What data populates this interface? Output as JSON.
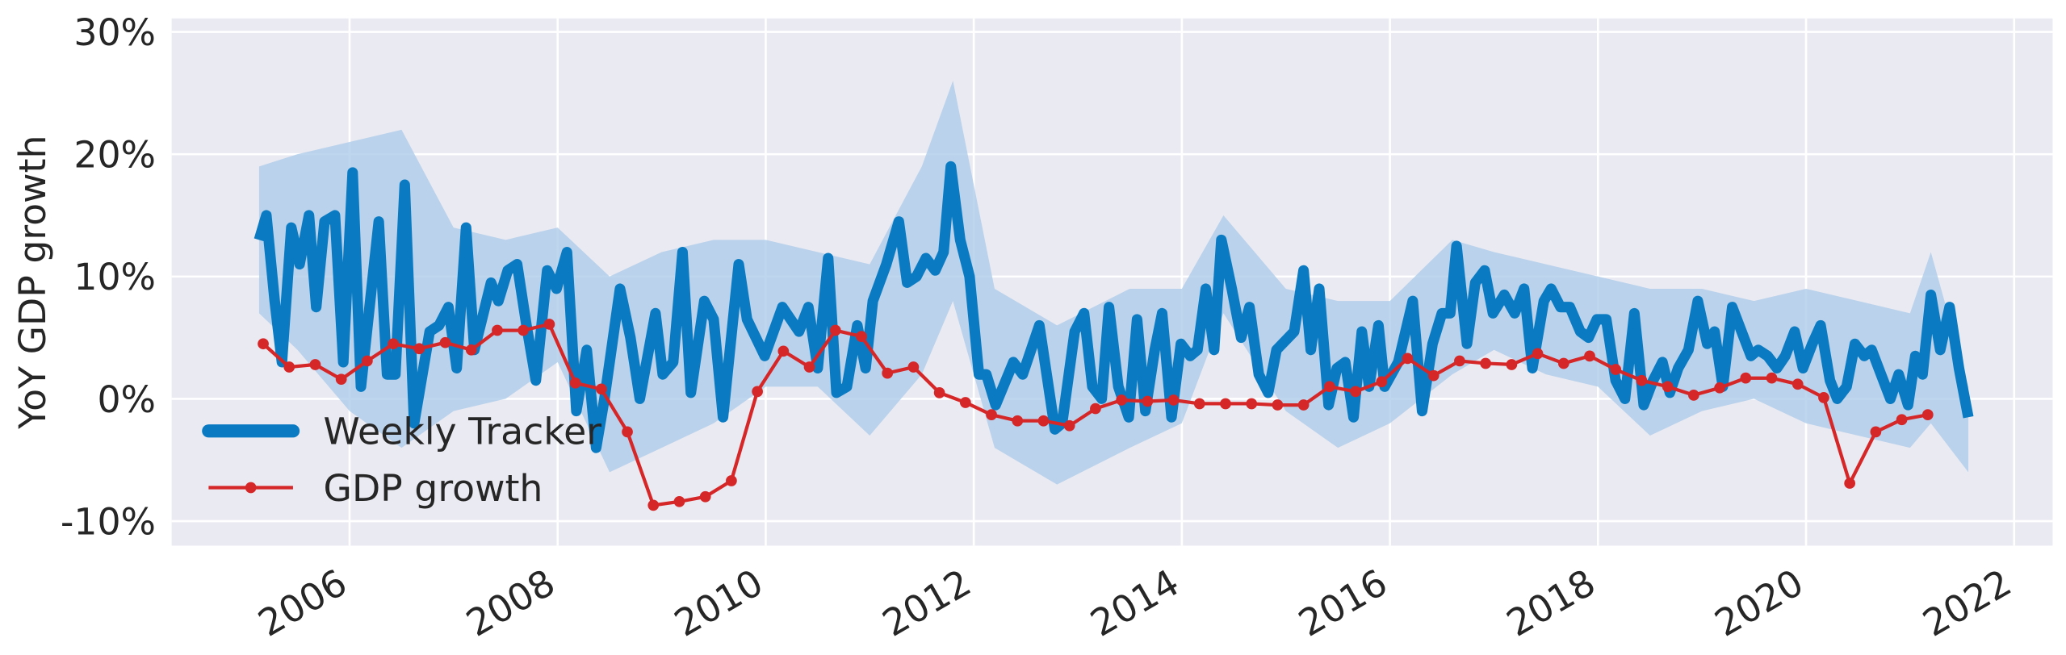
{
  "chart_data": {
    "type": "line",
    "ylabel": "YoY GDP growth",
    "xlim": [
      2004.29,
      2022.37
    ],
    "xticks": [
      2006,
      2008,
      2010,
      2012,
      2014,
      2016,
      2018,
      2020,
      2022
    ],
    "ylim": [
      -12,
      31.1
    ],
    "yticks": [
      {
        "value": -10,
        "label": "-10%"
      },
      {
        "value": 0,
        "label": "0%"
      },
      {
        "value": 10,
        "label": "10%"
      },
      {
        "value": 20,
        "label": "20%"
      },
      {
        "value": 30,
        "label": "30%"
      }
    ],
    "grid": true,
    "legend": "lower left",
    "series": [
      {
        "name": "Weekly Tracker",
        "color": "#0a7bc2",
        "band_color": "#a9c9e8",
        "x": [
          2005.13,
          2005.2,
          2005.28,
          2005.35,
          2005.44,
          2005.52,
          2005.61,
          2005.68,
          2005.76,
          2005.86,
          2005.94,
          2006.03,
          2006.11,
          2006.28,
          2006.36,
          2006.44,
          2006.53,
          2006.62,
          2006.77,
          2006.86,
          2006.95,
          2007.03,
          2007.12,
          2007.2,
          2007.36,
          2007.43,
          2007.52,
          2007.61,
          2007.7,
          2007.79,
          2007.9,
          2007.99,
          2008.09,
          2008.18,
          2008.28,
          2008.37,
          2008.45,
          2008.6,
          2008.7,
          2008.79,
          2008.94,
          2009.01,
          2009.11,
          2009.2,
          2009.28,
          2009.41,
          2009.5,
          2009.59,
          2009.74,
          2009.82,
          2009.99,
          2010.16,
          2010.32,
          2010.41,
          2010.5,
          2010.6,
          2010.68,
          2010.78,
          2010.88,
          2010.96,
          2011.03,
          2011.16,
          2011.28,
          2011.36,
          2011.45,
          2011.54,
          2011.63,
          2011.71,
          2011.78,
          2011.87,
          2011.96,
          2012.05,
          2012.12,
          2012.21,
          2012.38,
          2012.47,
          2012.63,
          2012.78,
          2012.85,
          2012.97,
          2013.06,
          2013.14,
          2013.23,
          2013.3,
          2013.39,
          2013.49,
          2013.57,
          2013.65,
          2013.74,
          2013.81,
          2013.9,
          2013.99,
          2014.08,
          2014.15,
          2014.23,
          2014.31,
          2014.38,
          2014.48,
          2014.57,
          2014.65,
          2014.74,
          2014.83,
          2014.91,
          2015.08,
          2015.17,
          2015.24,
          2015.32,
          2015.41,
          2015.49,
          2015.57,
          2015.65,
          2015.73,
          2015.8,
          2015.89,
          2015.95,
          2016.08,
          2016.22,
          2016.31,
          2016.41,
          2016.5,
          2016.58,
          2016.64,
          2016.74,
          2016.82,
          2016.91,
          2016.99,
          2017.1,
          2017.2,
          2017.29,
          2017.37,
          2017.48,
          2017.55,
          2017.64,
          2017.73,
          2017.83,
          2017.91,
          2017.99,
          2018.08,
          2018.17,
          2018.26,
          2018.35,
          2018.44,
          2018.53,
          2018.62,
          2018.69,
          2018.77,
          2018.87,
          2018.96,
          2019.05,
          2019.12,
          2019.2,
          2019.29,
          2019.38,
          2019.47,
          2019.54,
          2019.63,
          2019.72,
          2019.8,
          2019.89,
          2019.97,
          2020.06,
          2020.14,
          2020.23,
          2020.3,
          2020.39,
          2020.47,
          2020.56,
          2020.63,
          2020.72,
          2020.81,
          2020.89,
          2020.98,
          2021.05,
          2021.12,
          2021.2,
          2021.29,
          2021.38,
          2021.47,
          2021.56
        ],
        "values": [
          13,
          15,
          8,
          3,
          14,
          11,
          15,
          7.5,
          14.5,
          15,
          3,
          18.5,
          1,
          14.5,
          2,
          2,
          17.5,
          -2,
          5.5,
          6,
          7.5,
          2.5,
          14,
          4,
          9.5,
          8,
          10.5,
          11,
          6,
          1.5,
          10.5,
          9,
          12,
          -1,
          4,
          -4,
          0,
          9,
          5,
          0,
          7,
          2,
          3,
          12,
          0.5,
          8,
          6.5,
          -1.5,
          11,
          6.5,
          3.5,
          7.5,
          5.5,
          7.5,
          2.5,
          11.5,
          0.5,
          1,
          6,
          2.5,
          8,
          11,
          14.5,
          9.5,
          10,
          11.5,
          10.5,
          12,
          19,
          13,
          10,
          2,
          2,
          -0.5,
          3,
          2,
          6,
          -2.5,
          -2,
          5.5,
          7,
          1,
          0,
          7.5,
          1,
          -1.5,
          6.5,
          -1,
          4,
          7,
          -1.5,
          4.5,
          3.5,
          4,
          9,
          4,
          13,
          9,
          5,
          7.5,
          2,
          0.5,
          4,
          5.5,
          10.5,
          4,
          9,
          -0.5,
          2.5,
          3,
          -1.5,
          5.5,
          1,
          6,
          1,
          3,
          8,
          -1,
          4.5,
          7,
          7,
          12.5,
          4.5,
          9.5,
          10.5,
          7,
          8.5,
          7,
          9,
          2.5,
          8,
          9,
          7.5,
          7.5,
          5.5,
          5,
          6.5,
          6.5,
          1.5,
          0,
          7,
          -0.5,
          1.5,
          3,
          0.5,
          2.5,
          4,
          8,
          4.5,
          5.5,
          1,
          7.5,
          5.5,
          3.5,
          4,
          3.5,
          2.5,
          3.5,
          5.5,
          2.5,
          4.5,
          6,
          1.5,
          0,
          1,
          4.5,
          3.5,
          4,
          2,
          0,
          2,
          -0.5,
          3.5,
          2,
          8.5,
          4,
          7.5,
          2.5,
          -1.5
        ],
        "band_x": [
          2005.13,
          2005.5,
          2006,
          2006.5,
          2007,
          2007.5,
          2008,
          2008.5,
          2009,
          2009.5,
          2010,
          2010.5,
          2011,
          2011.5,
          2011.8,
          2012.2,
          2012.8,
          2013.5,
          2014,
          2014.4,
          2015,
          2015.5,
          2016,
          2016.6,
          2017,
          2017.5,
          2018,
          2018.5,
          2019,
          2019.5,
          2020,
          2020.5,
          2021,
          2021.2,
          2021.56
        ],
        "band_upper": [
          19,
          20,
          21,
          22,
          14,
          13,
          14,
          10,
          12,
          13,
          13,
          12,
          11,
          19,
          26,
          9,
          6,
          9,
          9,
          15,
          9,
          8,
          8,
          13,
          12,
          11,
          10,
          9,
          9,
          8,
          9,
          8,
          7,
          12,
          1
        ],
        "band_lower": [
          7,
          4,
          -1,
          -4,
          -1,
          0,
          3,
          -6,
          -4,
          -2,
          1,
          1,
          -3,
          2,
          8,
          -4,
          -7,
          -4,
          -2,
          7,
          -1,
          -4,
          -2,
          2,
          4,
          2,
          1,
          -3,
          -1,
          0,
          -2,
          -3,
          -4,
          -2,
          -6
        ]
      },
      {
        "name": "GDP growth",
        "color": "#d62728",
        "x": [
          2005.17,
          2005.42,
          2005.67,
          2005.92,
          2006.17,
          2006.42,
          2006.67,
          2006.92,
          2007.17,
          2007.42,
          2007.67,
          2007.92,
          2008.17,
          2008.42,
          2008.67,
          2008.92,
          2009.17,
          2009.42,
          2009.67,
          2009.92,
          2010.17,
          2010.42,
          2010.67,
          2010.92,
          2011.17,
          2011.42,
          2011.67,
          2011.92,
          2012.17,
          2012.42,
          2012.67,
          2012.92,
          2013.17,
          2013.42,
          2013.67,
          2013.92,
          2014.17,
          2014.42,
          2014.67,
          2014.92,
          2015.17,
          2015.42,
          2015.67,
          2015.92,
          2016.17,
          2016.42,
          2016.67,
          2016.92,
          2017.17,
          2017.42,
          2017.67,
          2017.92,
          2018.17,
          2018.42,
          2018.67,
          2018.92,
          2019.17,
          2019.42,
          2019.67,
          2019.92,
          2020.17,
          2020.42,
          2020.67,
          2020.92,
          2021.17
        ],
        "values": [
          4.5,
          2.6,
          2.8,
          1.6,
          3.1,
          4.5,
          4.1,
          4.6,
          4.0,
          5.6,
          5.6,
          6.1,
          1.3,
          0.8,
          -2.7,
          -8.7,
          -8.4,
          -8.0,
          -6.7,
          0.6,
          3.9,
          2.6,
          5.6,
          5.1,
          2.1,
          2.6,
          0.5,
          -0.3,
          -1.3,
          -1.8,
          -1.8,
          -2.2,
          -0.8,
          -0.1,
          -0.2,
          -0.1,
          -0.4,
          -0.4,
          -0.4,
          -0.5,
          -0.5,
          1.0,
          0.6,
          1.4,
          3.3,
          1.9,
          3.1,
          2.9,
          2.8,
          3.7,
          2.9,
          3.5,
          2.4,
          1.5,
          1.0,
          0.3,
          0.9,
          1.7,
          1.7,
          1.2,
          0.1,
          -6.9,
          -2.7,
          -1.7,
          -1.3
        ]
      }
    ]
  }
}
